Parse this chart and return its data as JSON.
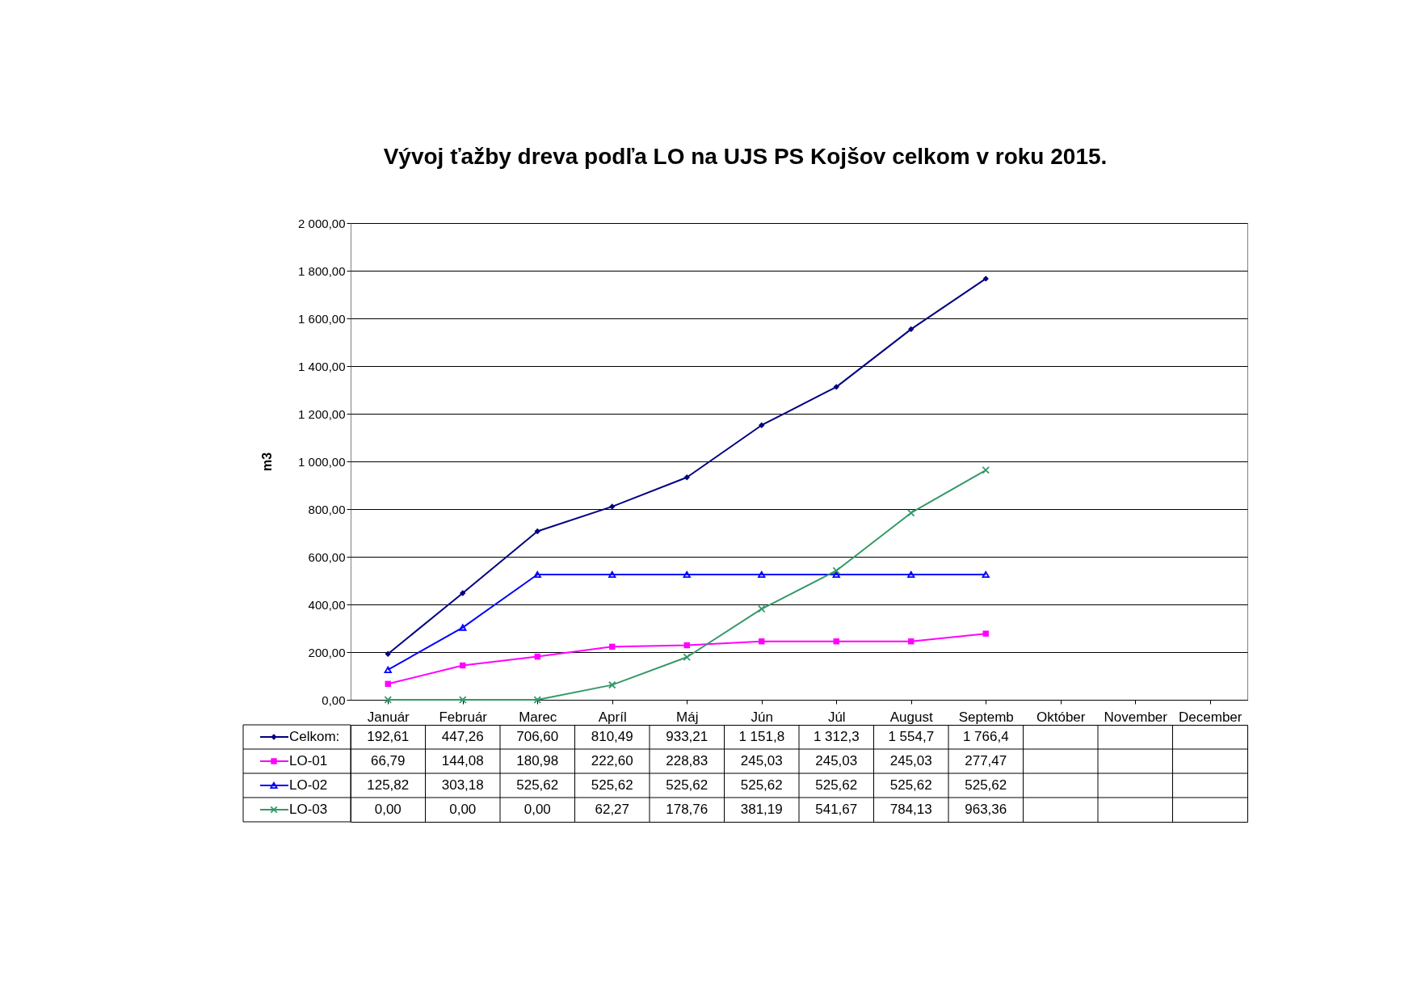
{
  "chart_data": {
    "type": "line",
    "title": "Vývoj ťažby dreva podľa LO na UJS PS Kojšov celkom v roku 2015.",
    "ylabel": "m3",
    "categories": [
      "Január",
      "Február",
      "Marec",
      "Apríl",
      "Máj",
      "Jún",
      "Júl",
      "August",
      "Septemb",
      "Október",
      "November",
      "December"
    ],
    "ylim": [
      0,
      2000
    ],
    "yticks": [
      {
        "value": 0,
        "label": "0,00"
      },
      {
        "value": 200,
        "label": "200,00"
      },
      {
        "value": 400,
        "label": "400,00"
      },
      {
        "value": 600,
        "label": "600,00"
      },
      {
        "value": 800,
        "label": "800,00"
      },
      {
        "value": 1000,
        "label": "1 000,00"
      },
      {
        "value": 1200,
        "label": "1 200,00"
      },
      {
        "value": 1400,
        "label": "1 400,00"
      },
      {
        "value": 1600,
        "label": "1 600,00"
      },
      {
        "value": 1800,
        "label": "1 800,00"
      },
      {
        "value": 2000,
        "label": "2 000,00"
      }
    ],
    "grid": "y",
    "legend": "bottom",
    "line_style": "solid",
    "series": [
      {
        "name": "Celkom:",
        "color": "#000080",
        "marker": "diamond",
        "values": [
          192.61,
          447.26,
          706.6,
          810.49,
          933.21,
          1151.8,
          1312.3,
          1554.7,
          1766.4,
          null,
          null,
          null
        ],
        "value_labels": [
          "192,61",
          "447,26",
          "706,60",
          "810,49",
          "933,21",
          "1 151,8",
          "1 312,3",
          "1 554,7",
          "1 766,4",
          null,
          null,
          null
        ]
      },
      {
        "name": "LO-01",
        "color": "#ff00ff",
        "marker": "square",
        "values": [
          66.79,
          144.08,
          180.98,
          222.6,
          228.83,
          245.03,
          245.03,
          245.03,
          277.47,
          null,
          null,
          null
        ],
        "value_labels": [
          "66,79",
          "144,08",
          "180,98",
          "222,60",
          "228,83",
          "245,03",
          "245,03",
          "245,03",
          "277,47",
          null,
          null,
          null
        ]
      },
      {
        "name": "LO-02",
        "color": "#0000ff",
        "marker": "triangle",
        "values": [
          125.82,
          303.18,
          525.62,
          525.62,
          525.62,
          525.62,
          525.62,
          525.62,
          525.62,
          null,
          null,
          null
        ],
        "value_labels": [
          "125,82",
          "303,18",
          "525,62",
          "525,62",
          "525,62",
          "525,62",
          "525,62",
          "525,62",
          "525,62",
          null,
          null,
          null
        ]
      },
      {
        "name": "LO-03",
        "color": "#339966",
        "marker": "cross",
        "values": [
          0.0,
          0.0,
          0.0,
          62.27,
          178.76,
          381.19,
          541.67,
          784.13,
          963.36,
          null,
          null,
          null
        ],
        "value_labels": [
          "0,00",
          "0,00",
          "0,00",
          "62,27",
          "178,76",
          "381,19",
          "541,67",
          "784,13",
          "963,36",
          null,
          null,
          null
        ]
      }
    ]
  }
}
